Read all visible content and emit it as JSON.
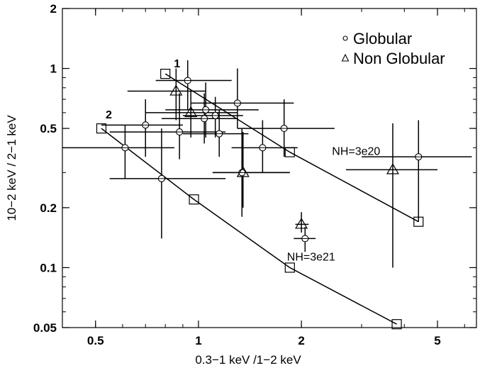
{
  "chart_data": {
    "type": "scatter",
    "x_scale": "log",
    "y_scale": "log",
    "xlim": [
      0.4,
      6.5
    ],
    "ylim": [
      0.05,
      2
    ],
    "xlabel": "0.3−1 keV /1−2 keV",
    "ylabel": "10−2 keV / 2−1 keV",
    "x_tick_values": [
      0.5,
      1,
      2,
      5
    ],
    "x_tick_labels": [
      "0.5",
      "1",
      "2",
      "5"
    ],
    "y_tick_values": [
      0.05,
      0.1,
      0.2,
      0.5,
      1,
      2
    ],
    "y_tick_labels": [
      "0.05",
      "0.1",
      "0.2",
      "0.5",
      "1",
      "2"
    ],
    "legend": {
      "position": "top-right",
      "entries": [
        {
          "marker": "circle",
          "label": "Globular"
        },
        {
          "marker": "triangle",
          "label": "Non Globular"
        }
      ]
    },
    "series": [
      {
        "marker": "circle",
        "points": [
          {
            "x": 0.93,
            "y": 0.87,
            "xerr": [
              0.75,
              1.25
            ],
            "yerr": [
              0.62,
              1.1
            ]
          },
          {
            "x": 1.05,
            "y": 0.62,
            "xerr": [
              0.8,
              1.5
            ],
            "yerr": [
              0.45,
              0.85
            ]
          },
          {
            "x": 1.3,
            "y": 0.67,
            "xerr": [
              0.95,
              1.9
            ],
            "yerr": [
              0.5,
              1.0
            ]
          },
          {
            "x": 1.12,
            "y": 0.58,
            "xerr": [
              0.9,
              1.35
            ],
            "yerr": [
              0.45,
              0.72
            ]
          },
          {
            "x": 1.04,
            "y": 0.56,
            "xerr": [
              0.78,
              1.3
            ],
            "yerr": [
              0.42,
              0.75
            ]
          },
          {
            "x": 1.15,
            "y": 0.47,
            "xerr": [
              0.9,
              1.4
            ],
            "yerr": [
              0.36,
              0.62
            ]
          },
          {
            "x": 0.88,
            "y": 0.48,
            "xerr": [
              0.55,
              1.2
            ],
            "yerr": [
              0.35,
              0.75
            ]
          },
          {
            "x": 0.7,
            "y": 0.52,
            "xerr": [
              0.52,
              0.9
            ],
            "yerr": [
              0.36,
              0.7
            ]
          },
          {
            "x": 0.61,
            "y": 0.4,
            "xerr": [
              0.4,
              0.85
            ],
            "yerr": [
              0.28,
              0.52
            ]
          },
          {
            "x": 0.78,
            "y": 0.28,
            "xerr": [
              0.55,
              1.2
            ],
            "yerr": [
              0.14,
              0.5
            ]
          },
          {
            "x": 1.54,
            "y": 0.4,
            "xerr": [
              1.25,
              1.95
            ],
            "yerr": [
              0.3,
              0.55
            ]
          },
          {
            "x": 1.78,
            "y": 0.5,
            "xerr": [
              1.3,
              2.5
            ],
            "yerr": [
              0.36,
              0.7
            ]
          },
          {
            "x": 1.34,
            "y": 0.3,
            "xerr": [
              1.1,
              1.85
            ],
            "yerr": [
              0.18,
              0.5
            ]
          },
          {
            "x": 4.4,
            "y": 0.36,
            "xerr": [
              3.0,
              6.3
            ],
            "yerr": [
              0.17,
              0.55
            ]
          },
          {
            "x": 2.05,
            "y": 0.14,
            "xerr": [
              1.9,
              2.2
            ],
            "yerr": [
              0.12,
              0.16
            ]
          }
        ]
      },
      {
        "marker": "triangle",
        "points": [
          {
            "x": 0.86,
            "y": 0.77,
            "xerr": [
              0.62,
              1.05
            ],
            "yerr": [
              0.55,
              1.0
            ]
          },
          {
            "x": 0.95,
            "y": 0.6,
            "xerr": [
              0.7,
              1.3
            ],
            "yerr": [
              0.45,
              0.78
            ]
          },
          {
            "x": 1.35,
            "y": 0.3,
            "xerr": [
              1.1,
              1.85
            ],
            "yerr": [
              0.2,
              0.48
            ]
          },
          {
            "x": 3.7,
            "y": 0.31,
            "xerr": [
              2.7,
              5.0
            ],
            "yerr": [
              0.1,
              0.53
            ]
          },
          {
            "x": 2.0,
            "y": 0.165,
            "xerr": [
              1.92,
              2.1
            ],
            "yerr": [
              0.15,
              0.19
            ]
          }
        ]
      }
    ],
    "model_lines": [
      {
        "label_start": "1",
        "label_end": "NH=3e20",
        "points": [
          {
            "x": 0.8,
            "y": 0.94
          },
          {
            "x": 1.85,
            "y": 0.38
          },
          {
            "x": 4.4,
            "y": 0.17
          }
        ]
      },
      {
        "label_start": "2",
        "label_end": "NH=3e21",
        "points": [
          {
            "x": 0.52,
            "y": 0.5
          },
          {
            "x": 0.97,
            "y": 0.22
          },
          {
            "x": 1.85,
            "y": 0.1
          },
          {
            "x": 3.8,
            "y": 0.052
          }
        ]
      }
    ]
  }
}
